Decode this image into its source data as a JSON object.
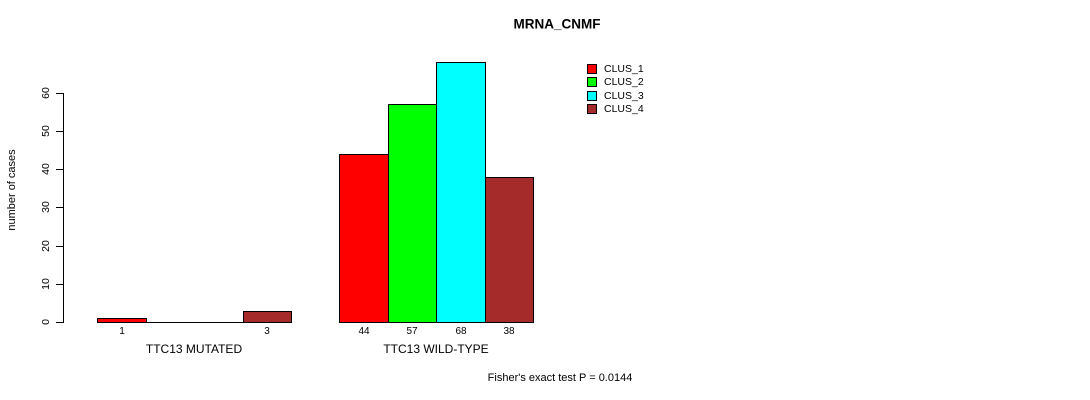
{
  "title": "MRNA_CNMF",
  "ylabel": "number of cases",
  "footer": "Fisher's exact test P = 0.0144",
  "chart_data": {
    "type": "bar",
    "title": "MRNA_CNMF",
    "xlabel": "",
    "ylabel": "number of cases",
    "ylim": [
      0,
      60
    ],
    "yticks": [
      0,
      10,
      20,
      30,
      40,
      50,
      60
    ],
    "grid": false,
    "categories": [
      "TTC13 MUTATED",
      "TTC13 WILD-TYPE"
    ],
    "series": [
      {
        "name": "CLUS_1",
        "color": "#ff0000",
        "values": [
          1,
          44
        ]
      },
      {
        "name": "CLUS_2",
        "color": "#00ff00",
        "values": [
          0,
          57
        ]
      },
      {
        "name": "CLUS_3",
        "color": "#00ffff",
        "values": [
          0,
          68
        ]
      },
      {
        "name": "CLUS_4",
        "color": "#a52a2a",
        "values": [
          3,
          38
        ]
      }
    ],
    "bar_labels": [
      [
        "1",
        "",
        "",
        "3"
      ],
      [
        "44",
        "57",
        "68",
        "38"
      ]
    ],
    "legend": {
      "position": "top-right",
      "entries": [
        "CLUS_1",
        "CLUS_2",
        "CLUS_3",
        "CLUS_4"
      ]
    },
    "annotation": "Fisher's exact test P = 0.0144"
  }
}
